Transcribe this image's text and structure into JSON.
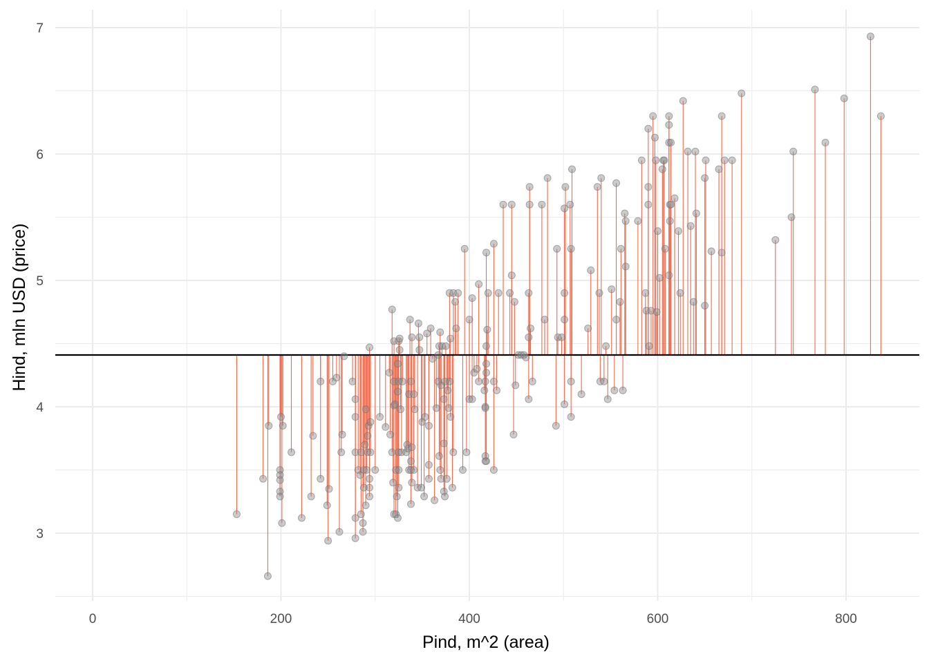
{
  "chart_data": {
    "type": "scatter",
    "title": "",
    "xlabel": "Pind, m^2 (area)",
    "ylabel": "Hind, mln USD (price)",
    "xlim": [
      -40,
      880
    ],
    "ylim": [
      2.5,
      7.1
    ],
    "x_ticks": [
      0,
      200,
      400,
      600,
      800
    ],
    "y_ticks": [
      3,
      4,
      5,
      6,
      7
    ],
    "grid": true,
    "mean_line": 4.41,
    "colors": {
      "points": "#8c8c8c",
      "residual_segments": "#ef6a4c",
      "mean_line": "#000000",
      "grid": "#ebebeb"
    },
    "points": [
      [
        153,
        3.15
      ],
      [
        181,
        3.43
      ],
      [
        186,
        2.66
      ],
      [
        187,
        3.85
      ],
      [
        199,
        3.5
      ],
      [
        199,
        3.46
      ],
      [
        199,
        3.42
      ],
      [
        199,
        3.33
      ],
      [
        199,
        3.29
      ],
      [
        200,
        3.92
      ],
      [
        201,
        3.08
      ],
      [
        202,
        3.85
      ],
      [
        211,
        3.64
      ],
      [
        222,
        3.12
      ],
      [
        232,
        3.29
      ],
      [
        234,
        3.77
      ],
      [
        242,
        3.43
      ],
      [
        242,
        4.2
      ],
      [
        249,
        3.22
      ],
      [
        250,
        2.94
      ],
      [
        251,
        3.35
      ],
      [
        255,
        4.2
      ],
      [
        259,
        4.23
      ],
      [
        262,
        3.01
      ],
      [
        264,
        3.64
      ],
      [
        265,
        3.78
      ],
      [
        267,
        4.4
      ],
      [
        276,
        4.2
      ],
      [
        279,
        3.64
      ],
      [
        279,
        3.92
      ],
      [
        279,
        4.06
      ],
      [
        279,
        3.12
      ],
      [
        279,
        2.96
      ],
      [
        282,
        3.5
      ],
      [
        284,
        3.46
      ],
      [
        285,
        3.15
      ],
      [
        285,
        3.64
      ],
      [
        287,
        3.08
      ],
      [
        287,
        3.01
      ],
      [
        288,
        3.5
      ],
      [
        288,
        3.36
      ],
      [
        289,
        3.7
      ],
      [
        290,
        3.22
      ],
      [
        290,
        3.98
      ],
      [
        291,
        3.5
      ],
      [
        292,
        3.64
      ],
      [
        292,
        3.77
      ],
      [
        293,
        3.85
      ],
      [
        294,
        4.47
      ],
      [
        294,
        3.43
      ],
      [
        294,
        3.36
      ],
      [
        294,
        3.29
      ],
      [
        295,
        3.88
      ],
      [
        295,
        3.64
      ],
      [
        300,
        3.5
      ],
      [
        305,
        3.92
      ],
      [
        311,
        3.84
      ],
      [
        315,
        4.27
      ],
      [
        316,
        3.78
      ],
      [
        318,
        4.77
      ],
      [
        318,
        3.64
      ],
      [
        319,
        3.4
      ],
      [
        320,
        4.52
      ],
      [
        320,
        3.15
      ],
      [
        320,
        4.2
      ],
      [
        320,
        4.01
      ],
      [
        321,
        4.02
      ],
      [
        322,
        3.15
      ],
      [
        322,
        3.5
      ],
      [
        323,
        3.29
      ],
      [
        324,
        3.12
      ],
      [
        324,
        4.34
      ],
      [
        324,
        4.12
      ],
      [
        325,
        3.36
      ],
      [
        325,
        4.52
      ],
      [
        325,
        3.64
      ],
      [
        325,
        3.5
      ],
      [
        325,
        4.2
      ],
      [
        326,
        4.54
      ],
      [
        326,
        4.45
      ],
      [
        327,
        3.98
      ],
      [
        328,
        3.64
      ],
      [
        329,
        4.2
      ],
      [
        333,
        3.64
      ],
      [
        334,
        3.7
      ],
      [
        335,
        3.67
      ],
      [
        336,
        4.1
      ],
      [
        336,
        3.5
      ],
      [
        337,
        4.69
      ],
      [
        338,
        4.2
      ],
      [
        338,
        3.57
      ],
      [
        338,
        3.5
      ],
      [
        338,
        3.23
      ],
      [
        339,
        3.68
      ],
      [
        339,
        4.55
      ],
      [
        339,
        3.4
      ],
      [
        341,
        3.5
      ],
      [
        341,
        4.1
      ],
      [
        342,
        3.98
      ],
      [
        345,
        3.36
      ],
      [
        346,
        4.66
      ],
      [
        347,
        4.55
      ],
      [
        347,
        4.45
      ],
      [
        349,
        3.36
      ],
      [
        350,
        3.88
      ],
      [
        352,
        3.29
      ],
      [
        353,
        3.92
      ],
      [
        355,
        4.58
      ],
      [
        357,
        3.43
      ],
      [
        357,
        3.85
      ],
      [
        357,
        3.54
      ],
      [
        359,
        4.62
      ],
      [
        361,
        4.38
      ],
      [
        363,
        3.26
      ],
      [
        365,
        3.99
      ],
      [
        367,
        4.41
      ],
      [
        367,
        4.2
      ],
      [
        368,
        4.48
      ],
      [
        368,
        3.61
      ],
      [
        369,
        3.5
      ],
      [
        369,
        4.59
      ],
      [
        370,
        3.43
      ],
      [
        370,
        4.17
      ],
      [
        371,
        4.48
      ],
      [
        373,
        4.06
      ],
      [
        373,
        3.71
      ],
      [
        373,
        3.33
      ],
      [
        374,
        3.29
      ],
      [
        374,
        4.2
      ],
      [
        375,
        4.48
      ],
      [
        376,
        3.43
      ],
      [
        377,
        4.13
      ],
      [
        378,
        3.99
      ],
      [
        379,
        4.9
      ],
      [
        379,
        4.2
      ],
      [
        380,
        3.92
      ],
      [
        380,
        4.54
      ],
      [
        382,
        3.36
      ],
      [
        383,
        4.9
      ],
      [
        383,
        3.64
      ],
      [
        385,
        4.83
      ],
      [
        386,
        4.62
      ],
      [
        388,
        4.9
      ],
      [
        393,
        3.5
      ],
      [
        395,
        5.25
      ],
      [
        397,
        3.64
      ],
      [
        400,
        4.69
      ],
      [
        400,
        4.06
      ],
      [
        403,
        4.86
      ],
      [
        403,
        4.06
      ],
      [
        405,
        4.27
      ],
      [
        408,
        4.3
      ],
      [
        410,
        4.97
      ],
      [
        410,
        4.2
      ],
      [
        416,
        4.13
      ],
      [
        417,
        4.2
      ],
      [
        417,
        4.0
      ],
      [
        417,
        3.99
      ],
      [
        417,
        3.61
      ],
      [
        417,
        3.57
      ],
      [
        418,
        5.22
      ],
      [
        418,
        4.48
      ],
      [
        418,
        4.34
      ],
      [
        418,
        4.27
      ],
      [
        418,
        3.57
      ],
      [
        419,
        4.61
      ],
      [
        420,
        4.9
      ],
      [
        426,
        3.5
      ],
      [
        426,
        5.29
      ],
      [
        426,
        4.2
      ],
      [
        429,
        4.13
      ],
      [
        431,
        4.9
      ],
      [
        436,
        5.6
      ],
      [
        443,
        4.9
      ],
      [
        445,
        5.04
      ],
      [
        445,
        5.6
      ],
      [
        447,
        3.78
      ],
      [
        448,
        4.83
      ],
      [
        449,
        4.17
      ],
      [
        452,
        4.41
      ],
      [
        455,
        4.41
      ],
      [
        458,
        4.41
      ],
      [
        460,
        4.39
      ],
      [
        463,
        4.06
      ],
      [
        463,
        4.55
      ],
      [
        463,
        4.9
      ],
      [
        464,
        5.74
      ],
      [
        464,
        5.6
      ],
      [
        465,
        4.62
      ],
      [
        467,
        4.2
      ],
      [
        477,
        5.6
      ],
      [
        480,
        4.69
      ],
      [
        483,
        5.81
      ],
      [
        492,
        3.85
      ],
      [
        493,
        5.25
      ],
      [
        494,
        4.55
      ],
      [
        498,
        4.55
      ],
      [
        501,
        4.9
      ],
      [
        501,
        4.69
      ],
      [
        501,
        4.02
      ],
      [
        501,
        5.57
      ],
      [
        502,
        5.74
      ],
      [
        507,
        5.6
      ],
      [
        508,
        5.25
      ],
      [
        508,
        4.2
      ],
      [
        508,
        3.92
      ],
      [
        509,
        5.88
      ],
      [
        519,
        4.1
      ],
      [
        526,
        4.62
      ],
      [
        529,
        5.08
      ],
      [
        536,
        5.74
      ],
      [
        538,
        4.9
      ],
      [
        539,
        4.2
      ],
      [
        540,
        5.81
      ],
      [
        543,
        4.2
      ],
      [
        545,
        4.48
      ],
      [
        547,
        4.06
      ],
      [
        551,
        4.93
      ],
      [
        554,
        4.13
      ],
      [
        556,
        5.77
      ],
      [
        556,
        4.69
      ],
      [
        560,
        4.83
      ],
      [
        561,
        5.25
      ],
      [
        563,
        4.13
      ],
      [
        565,
        5.53
      ],
      [
        566,
        5.47
      ],
      [
        566,
        5.11
      ],
      [
        579,
        5.47
      ],
      [
        583,
        5.95
      ],
      [
        587,
        4.9
      ],
      [
        588,
        4.76
      ],
      [
        590,
        6.2
      ],
      [
        590,
        5.74
      ],
      [
        590,
        5.6
      ],
      [
        591,
        4.48
      ],
      [
        593,
        4.76
      ],
      [
        595,
        6.3
      ],
      [
        597,
        6.13
      ],
      [
        598,
        5.95
      ],
      [
        599,
        4.75
      ],
      [
        600,
        5.39
      ],
      [
        602,
        5.02
      ],
      [
        605,
        5.88
      ],
      [
        606,
        5.95
      ],
      [
        607,
        5.95
      ],
      [
        608,
        5.25
      ],
      [
        612,
        5.04
      ],
      [
        612,
        6.3
      ],
      [
        612,
        6.23
      ],
      [
        612,
        6.09
      ],
      [
        613,
        5.6
      ],
      [
        613,
        5.47
      ],
      [
        614,
        6.09
      ],
      [
        614,
        5.6
      ],
      [
        618,
        5.65
      ],
      [
        622,
        5.39
      ],
      [
        624,
        4.9
      ],
      [
        627,
        6.42
      ],
      [
        632,
        6.02
      ],
      [
        635,
        5.43
      ],
      [
        638,
        4.83
      ],
      [
        640,
        6.02
      ],
      [
        641,
        5.53
      ],
      [
        650,
        5.81
      ],
      [
        650,
        4.8
      ],
      [
        651,
        5.95
      ],
      [
        657,
        5.23
      ],
      [
        665,
        5.88
      ],
      [
        668,
        5.22
      ],
      [
        668,
        6.3
      ],
      [
        671,
        5.95
      ],
      [
        679,
        5.95
      ],
      [
        689,
        6.48
      ],
      [
        725,
        5.32
      ],
      [
        742,
        5.5
      ],
      [
        744,
        6.02
      ],
      [
        767,
        6.51
      ],
      [
        778,
        6.09
      ],
      [
        798,
        6.44
      ],
      [
        826,
        6.93
      ],
      [
        837,
        6.3
      ]
    ]
  }
}
